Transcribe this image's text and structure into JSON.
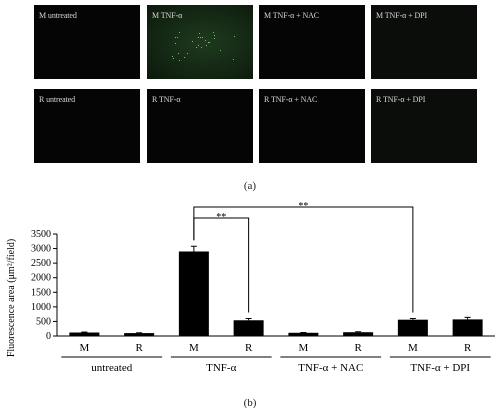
{
  "figure": {
    "caption_a": "(a)",
    "caption_b": "(b)",
    "panels_row1": [
      {
        "label": "M untreated",
        "style": "dark"
      },
      {
        "label": "M TNF-α",
        "style": "green"
      },
      {
        "label": "M TNF-α + NAC",
        "style": "dark"
      },
      {
        "label": "M TNF-α + DPI",
        "style": "faint"
      }
    ],
    "panels_row2": [
      {
        "label": "R untreated",
        "style": "dark"
      },
      {
        "label": "R TNF-α",
        "style": "dark"
      },
      {
        "label": "R TNF-α + NAC",
        "style": "dark"
      },
      {
        "label": "R TNF-α + DPI",
        "style": "faint"
      }
    ]
  },
  "chart_data": {
    "type": "bar",
    "ylabel": "Fluorescence area (μm²/field)",
    "ylim": [
      0,
      3500
    ],
    "yticks": [
      0,
      500,
      1000,
      1500,
      2000,
      2500,
      3000,
      3500
    ],
    "categories": [
      "M",
      "R",
      "M",
      "R",
      "M",
      "R",
      "M",
      "R"
    ],
    "groups": [
      "untreated",
      "TNF-α",
      "TNF-α + NAC",
      "TNF-α + DPI"
    ],
    "values": [
      120,
      100,
      2900,
      540,
      110,
      130,
      560,
      570
    ],
    "errors": [
      15,
      10,
      180,
      60,
      10,
      15,
      40,
      70
    ],
    "significance": [
      {
        "from": 2,
        "to": 3,
        "label": "**"
      },
      {
        "from": 2,
        "to": 6,
        "label": "**"
      }
    ],
    "bar_color": "#000000",
    "grid": false
  }
}
